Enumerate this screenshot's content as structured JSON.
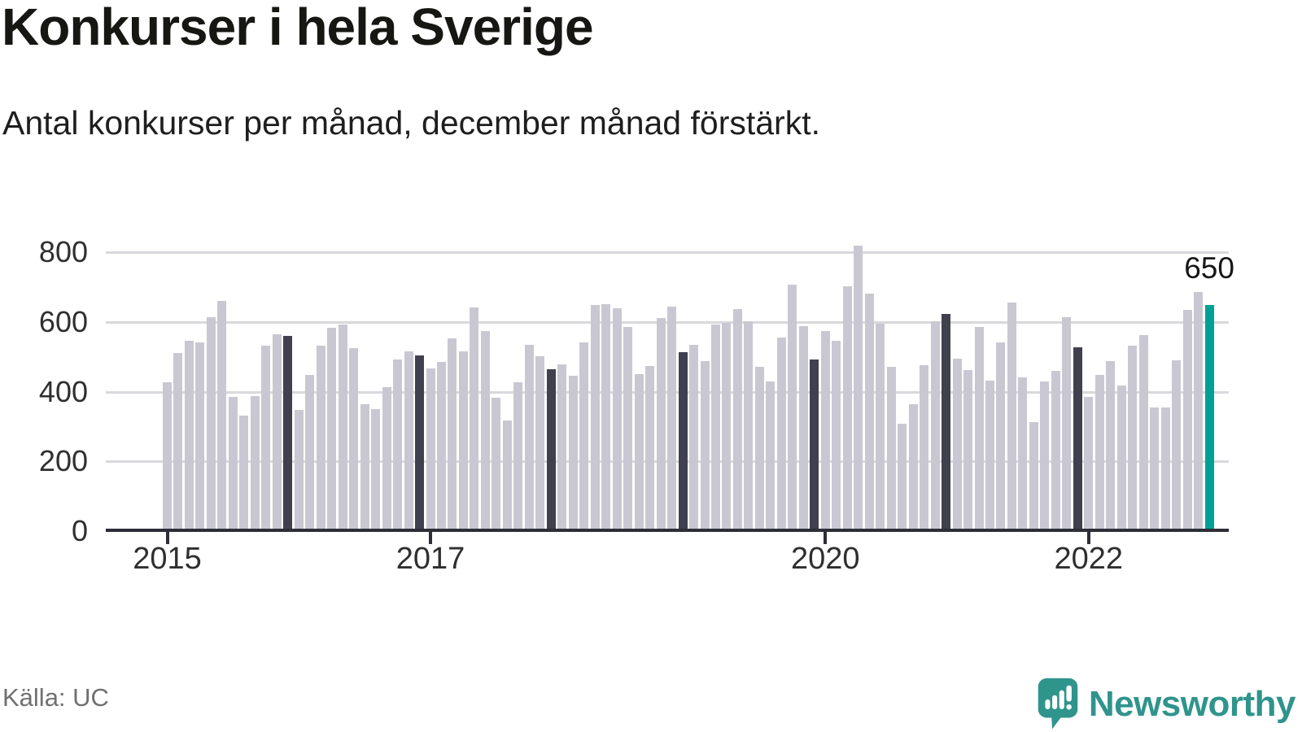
{
  "header": {
    "title": "Konkurser i hela Sverige",
    "subtitle": "Antal konkurser per månad, december månad förstärkt."
  },
  "footer": {
    "source": "Källa: UC",
    "brand": "Newsworthy"
  },
  "chart_data": {
    "type": "bar",
    "title": "Konkurser i hela Sverige",
    "subtitle": "Antal konkurser per månad, december månad förstärkt.",
    "unit": "konkurser per månad",
    "start_month": "2015-01",
    "end_month": "2022-12",
    "values": [
      430,
      512,
      549,
      544,
      615,
      662,
      388,
      333,
      390,
      534,
      566,
      562,
      350,
      450,
      535,
      585,
      595,
      528,
      367,
      353,
      415,
      495,
      518,
      507,
      470,
      487,
      554,
      518,
      644,
      575,
      386,
      320,
      429,
      536,
      504,
      466,
      480,
      448,
      543,
      651,
      654,
      642,
      588,
      452,
      476,
      613,
      647,
      515,
      536,
      489,
      594,
      599,
      640,
      605,
      473,
      432,
      558,
      709,
      591,
      494,
      575,
      548,
      705,
      820,
      684,
      596,
      473,
      310,
      366,
      478,
      605,
      626,
      496,
      464,
      587,
      433,
      544,
      657,
      444,
      314,
      431,
      462,
      615,
      529,
      387,
      451,
      489,
      421,
      533,
      565,
      357,
      357,
      491,
      637,
      688,
      650
    ],
    "december_emphasis": true,
    "highlight": {
      "index": 95,
      "label": "650",
      "value": 650
    },
    "x_ticks": [
      {
        "month_index": 0,
        "label": "2015"
      },
      {
        "month_index": 24,
        "label": "2017"
      },
      {
        "month_index": 60,
        "label": "2020"
      },
      {
        "month_index": 84,
        "label": "2022"
      }
    ],
    "y_ticks": [
      0,
      200,
      400,
      600,
      800
    ],
    "ylim": [
      0,
      896
    ],
    "legend": "none",
    "grid": "horizontal",
    "colors": {
      "bar": "#c9c8d2",
      "december_bar": "#40404f",
      "latest_bar": "#00a095",
      "grid": "#d9d9dd",
      "axis": "#2e2e38",
      "brand_teal": "#2f948c"
    }
  }
}
